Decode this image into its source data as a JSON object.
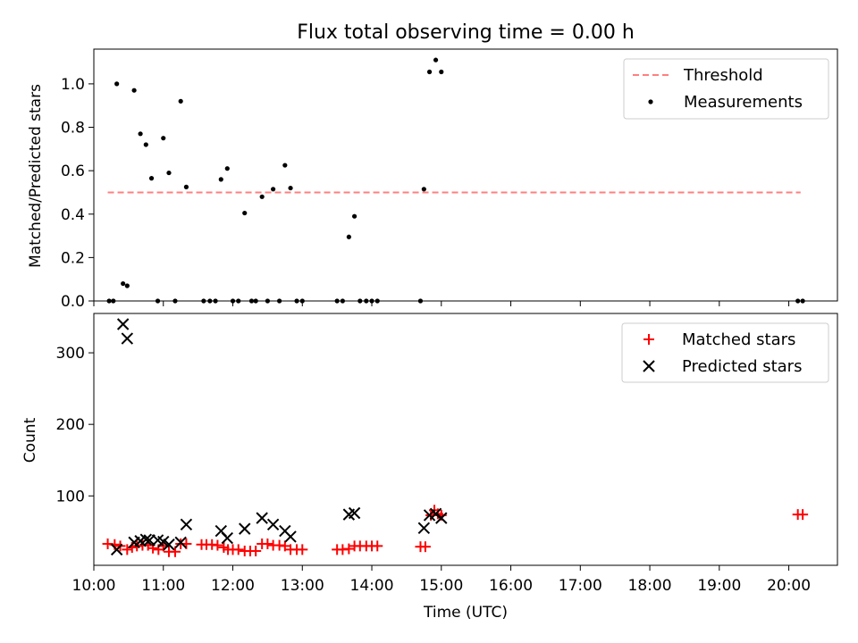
{
  "chart_data": [
    {
      "type": "scatter",
      "title": "Flux total observing time = 0.00 h",
      "xlabel": "",
      "ylabel": "Matched/Predicted stars",
      "xlim": [
        10.0,
        20.7
      ],
      "ylim": [
        0.0,
        1.16
      ],
      "yticks": [
        0.0,
        0.2,
        0.4,
        0.6,
        0.8,
        1.0
      ],
      "yticklabels": [
        "0.0",
        "0.2",
        "0.4",
        "0.6",
        "0.8",
        "1.0"
      ],
      "grid": false,
      "legend_position": "top-right",
      "legend": [
        "Threshold",
        "Measurements"
      ],
      "threshold": {
        "name": "Threshold",
        "value": 0.5,
        "x_range": [
          10.2,
          20.17
        ],
        "color": "#ff7f7f",
        "style": "dashed"
      },
      "series": [
        {
          "name": "Measurements",
          "marker": "dot",
          "color": "#000000",
          "x": [
            10.22,
            10.28,
            10.33,
            10.42,
            10.48,
            10.58,
            10.67,
            10.75,
            10.83,
            10.92,
            11.0,
            11.08,
            11.17,
            11.25,
            11.33,
            11.58,
            11.67,
            11.75,
            11.83,
            11.92,
            12.0,
            12.08,
            12.17,
            12.27,
            12.33,
            12.42,
            12.5,
            12.58,
            12.67,
            12.75,
            12.83,
            12.92,
            13.0,
            13.5,
            13.58,
            13.67,
            13.75,
            13.83,
            13.92,
            14.0,
            14.08,
            14.7,
            14.75,
            14.83,
            14.92,
            15.0,
            20.13,
            20.2
          ],
          "y": [
            0.0,
            0.0,
            1.0,
            0.08,
            0.07,
            0.97,
            0.77,
            0.72,
            0.565,
            0.0,
            0.75,
            0.59,
            0.0,
            0.92,
            0.525,
            0.0,
            0.0,
            0.0,
            0.56,
            0.61,
            0.0,
            0.0,
            0.405,
            0.0,
            0.0,
            0.48,
            0.0,
            0.515,
            0.0,
            0.625,
            0.52,
            0.0,
            0.0,
            0.0,
            0.0,
            0.295,
            0.39,
            0.0,
            0.0,
            0.0,
            0.0,
            0.0,
            0.515,
            1.055,
            1.11,
            1.055,
            0.0,
            0.0
          ]
        }
      ]
    },
    {
      "type": "scatter",
      "title": "",
      "xlabel": "Time (UTC)",
      "ylabel": "Count",
      "xlim": [
        10.0,
        20.7
      ],
      "ylim": [
        3,
        355
      ],
      "yticks": [
        100,
        200,
        300
      ],
      "yticklabels": [
        "100",
        "200",
        "300"
      ],
      "xticks": [
        10,
        11,
        12,
        13,
        14,
        15,
        16,
        17,
        18,
        19,
        20
      ],
      "xticklabels": [
        "10:00",
        "11:00",
        "12:00",
        "13:00",
        "14:00",
        "15:00",
        "16:00",
        "17:00",
        "18:00",
        "19:00",
        "20:00"
      ],
      "grid": false,
      "legend_position": "top-right",
      "legend": [
        "Matched stars",
        "Predicted stars"
      ],
      "series": [
        {
          "name": "Matched stars",
          "marker": "plus",
          "color": "#ff0000",
          "x": [
            10.2,
            10.3,
            10.38,
            10.48,
            10.55,
            10.62,
            10.7,
            10.78,
            10.85,
            10.93,
            11.0,
            11.08,
            11.17,
            11.25,
            11.33,
            11.55,
            11.62,
            11.7,
            11.78,
            11.87,
            11.93,
            12.0,
            12.08,
            12.17,
            12.25,
            12.33,
            12.42,
            12.5,
            12.58,
            12.67,
            12.75,
            12.83,
            12.92,
            13.0,
            13.5,
            13.58,
            13.67,
            13.75,
            13.83,
            13.92,
            14.0,
            14.08,
            14.7,
            14.77,
            14.85,
            14.9,
            14.95,
            15.0,
            20.13,
            20.2
          ],
          "y": [
            33,
            32,
            30,
            25,
            28,
            30,
            31,
            31,
            27,
            25,
            30,
            22,
            22,
            33,
            33,
            32,
            32,
            32,
            31,
            28,
            25,
            25,
            25,
            23,
            23,
            23,
            33,
            33,
            31,
            31,
            30,
            25,
            25,
            25,
            25,
            25,
            26,
            30,
            30,
            30,
            30,
            30,
            29,
            29,
            73,
            80,
            75,
            73,
            74,
            74
          ]
        },
        {
          "name": "Predicted stars",
          "marker": "x",
          "color": "#000000",
          "x": [
            10.33,
            10.42,
            10.48,
            10.58,
            10.67,
            10.75,
            10.8,
            10.92,
            11.0,
            11.08,
            11.25,
            11.33,
            11.83,
            11.92,
            12.17,
            12.42,
            12.58,
            12.75,
            12.83,
            13.67,
            13.75,
            14.75,
            14.83,
            14.92,
            15.0
          ],
          "y": [
            25,
            340,
            320,
            35,
            37,
            39,
            38,
            38,
            36,
            32,
            35,
            60,
            51,
            41,
            54,
            69,
            60,
            51,
            43,
            74,
            76,
            55,
            73,
            75,
            69
          ]
        }
      ]
    }
  ]
}
